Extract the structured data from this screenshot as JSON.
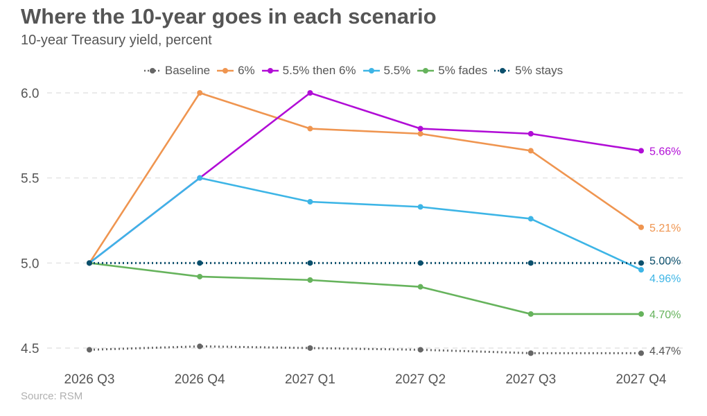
{
  "header": {
    "title": "Where the 10-year goes in each scenario",
    "subtitle": "10-year Treasury yield, percent",
    "source": "Source: RSM"
  },
  "chart_data": {
    "type": "line",
    "title": "Where the 10-year goes in each scenario",
    "subtitle": "10-year Treasury yield, percent",
    "xlabel": "",
    "ylabel": "",
    "categories": [
      "2026 Q3",
      "2026 Q4",
      "2027 Q1",
      "2027 Q2",
      "2027 Q3",
      "2027 Q4"
    ],
    "ylim": [
      4.4,
      6.1
    ],
    "yticks": [
      4.5,
      5.0,
      5.5,
      6.0
    ],
    "ytick_labels": [
      "4.5",
      "5.0",
      "5.5",
      "6.0"
    ],
    "grid": "horizontal dashed",
    "legend_position": "top",
    "series": [
      {
        "name": "Baseline",
        "color": "#666666",
        "dashed": true,
        "values": [
          4.49,
          4.51,
          4.5,
          4.49,
          4.47,
          4.47
        ],
        "end_label": "4.47%"
      },
      {
        "name": "6%",
        "color": "#ef9550",
        "dashed": false,
        "values": [
          5.0,
          6.0,
          5.79,
          5.76,
          5.66,
          5.21
        ],
        "end_label": "5.21%"
      },
      {
        "name": "5.5% then 6%",
        "color": "#b10dd6",
        "dashed": false,
        "values": [
          5.0,
          5.5,
          6.0,
          5.79,
          5.76,
          5.66
        ],
        "end_label": "5.66%"
      },
      {
        "name": "5.5%",
        "color": "#3db5e6",
        "dashed": false,
        "values": [
          5.0,
          5.5,
          5.36,
          5.33,
          5.26,
          4.96
        ],
        "end_label": "4.96%"
      },
      {
        "name": "5% fades",
        "color": "#66b35c",
        "dashed": false,
        "values": [
          5.0,
          4.92,
          4.9,
          4.86,
          4.7,
          4.7
        ],
        "end_label": "4.70%"
      },
      {
        "name": "5% stays",
        "color": "#0b4f6c",
        "dashed": true,
        "values": [
          5.0,
          5.0,
          5.0,
          5.0,
          5.0,
          5.0
        ],
        "end_label": "5.00%"
      }
    ]
  }
}
